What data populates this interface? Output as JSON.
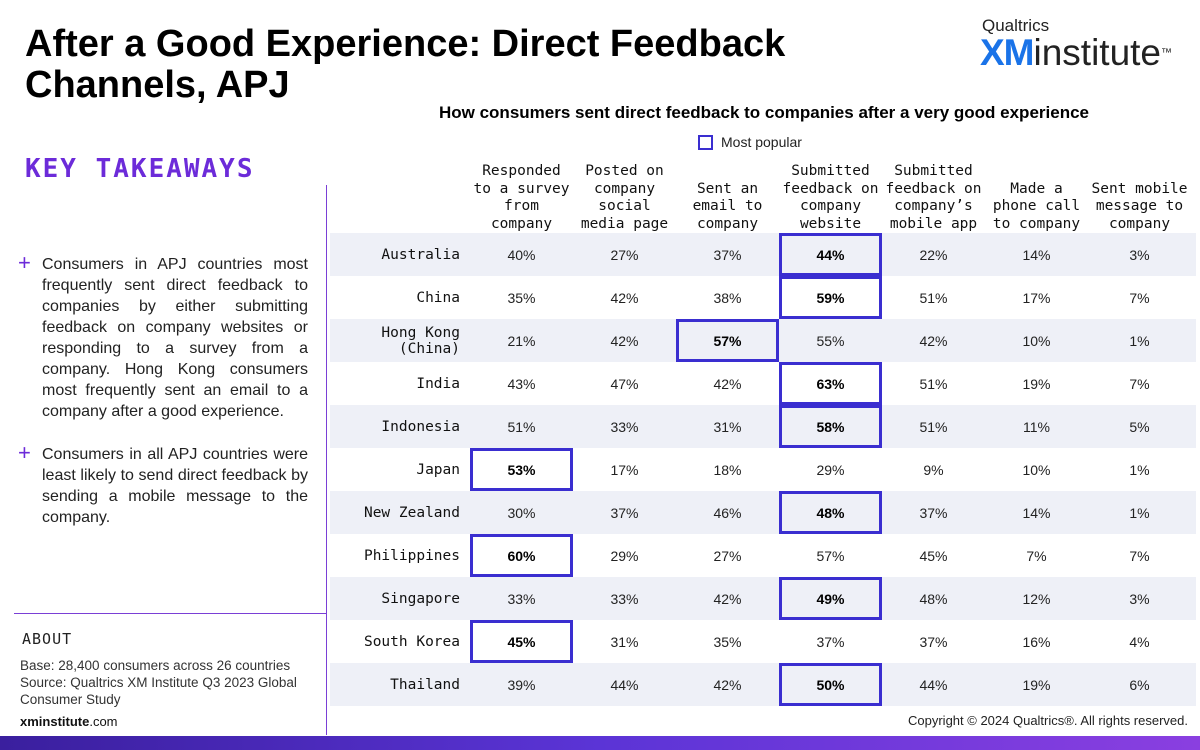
{
  "page": {
    "title": "After a Good Experience: Direct Feedback Channels, APJ",
    "logo": {
      "top": "Qualtrics",
      "xm": "XM",
      "main": "institute",
      "tm": "™"
    },
    "takeaways_heading": "KEY TAKEAWAYS",
    "bullets": [
      "Consumers in APJ countries most frequently sent direct feedback to companies by either submitting feedback on company websites or responding to a survey from a company. Hong Kong consumers most frequently sent an email to a company after a good experience.",
      "Consumers in all APJ countries were least likely to send direct feedback by sending a mobile message to the company."
    ],
    "about_heading": "ABOUT",
    "about_lines": [
      "Base: 28,400 consumers across 26 countries",
      "Source: Qualtrics XM Institute Q3 2023 Global Consumer Study"
    ],
    "site": {
      "bold": "xminstitute",
      "rest": ".com"
    },
    "copyright": "Copyright © 2024 Qualtrics®. All rights reserved."
  },
  "chart_data": {
    "type": "table",
    "title": "How consumers sent direct feedback to companies after a very good experience",
    "legend": "Most popular",
    "columns": [
      [
        "Responded",
        "to a survey",
        "from",
        "company"
      ],
      [
        "Posted on",
        "company",
        "social",
        "media page"
      ],
      [
        "Sent an",
        "email to",
        "company"
      ],
      [
        "Submitted",
        "feedback on",
        "company",
        "website"
      ],
      [
        "Submitted",
        "feedback on",
        "company’s",
        "mobile app"
      ],
      [
        "Made a",
        "phone call",
        "to company"
      ],
      [
        "Sent mobile",
        "message to",
        "company"
      ]
    ],
    "rows": [
      {
        "country": [
          "Australia"
        ],
        "values": [
          "40%",
          "27%",
          "37%",
          "44%",
          "22%",
          "14%",
          "3%"
        ],
        "highlight": 3
      },
      {
        "country": [
          "China"
        ],
        "values": [
          "35%",
          "42%",
          "38%",
          "59%",
          "51%",
          "17%",
          "7%"
        ],
        "highlight": 3
      },
      {
        "country": [
          "Hong Kong",
          "(China)"
        ],
        "values": [
          "21%",
          "42%",
          "57%",
          "55%",
          "42%",
          "10%",
          "1%"
        ],
        "highlight": 2
      },
      {
        "country": [
          "India"
        ],
        "values": [
          "43%",
          "47%",
          "42%",
          "63%",
          "51%",
          "19%",
          "7%"
        ],
        "highlight": 3
      },
      {
        "country": [
          "Indonesia"
        ],
        "values": [
          "51%",
          "33%",
          "31%",
          "58%",
          "51%",
          "11%",
          "5%"
        ],
        "highlight": 3
      },
      {
        "country": [
          "Japan"
        ],
        "values": [
          "53%",
          "17%",
          "18%",
          "29%",
          "9%",
          "10%",
          "1%"
        ],
        "highlight": 0
      },
      {
        "country": [
          "New Zealand"
        ],
        "values": [
          "30%",
          "37%",
          "46%",
          "48%",
          "37%",
          "14%",
          "1%"
        ],
        "highlight": 3
      },
      {
        "country": [
          "Philippines"
        ],
        "values": [
          "60%",
          "29%",
          "27%",
          "57%",
          "45%",
          "7%",
          "7%"
        ],
        "highlight": 0
      },
      {
        "country": [
          "Singapore"
        ],
        "values": [
          "33%",
          "33%",
          "42%",
          "49%",
          "48%",
          "12%",
          "3%"
        ],
        "highlight": 3
      },
      {
        "country": [
          "South Korea"
        ],
        "values": [
          "45%",
          "31%",
          "35%",
          "37%",
          "37%",
          "16%",
          "4%"
        ],
        "highlight": 0
      },
      {
        "country": [
          "Thailand"
        ],
        "values": [
          "39%",
          "44%",
          "42%",
          "50%",
          "44%",
          "19%",
          "6%"
        ],
        "highlight": 3
      }
    ]
  }
}
